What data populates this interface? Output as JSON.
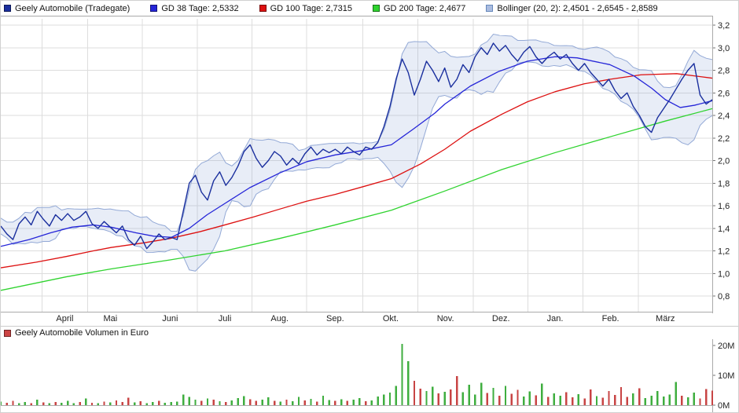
{
  "chart_data": {
    "type": "line",
    "title": "Geely Automobile (Tradegate)",
    "legend": [
      {
        "label": "Geely Automobile (Tradegate)",
        "color": "#1a2f9e"
      },
      {
        "label": "GD 38 Tage: 2,5332",
        "color": "#2525d8"
      },
      {
        "label": "GD 100 Tage: 2,7315",
        "color": "#dd1111"
      },
      {
        "label": "GD 200 Tage: 2,4677",
        "color": "#2fd32f"
      },
      {
        "label": "Bollinger (20, 2): 2,4501 - 2,6545 - 2,8589",
        "color": "#aabce0",
        "border": "#6688bb"
      }
    ],
    "y_axis": {
      "min": 0.8,
      "max": 3.2,
      "ticks": [
        {
          "label": "3,2",
          "value": 3.2
        },
        {
          "label": "3,0",
          "value": 3.0
        },
        {
          "label": "2,8",
          "value": 2.8
        },
        {
          "label": "2,6",
          "value": 2.6
        },
        {
          "label": "2,4",
          "value": 2.4
        },
        {
          "label": "2,2",
          "value": 2.2
        },
        {
          "label": "2,0",
          "value": 2.0
        },
        {
          "label": "1,8",
          "value": 1.8
        },
        {
          "label": "1,6",
          "value": 1.6
        },
        {
          "label": "1,4",
          "value": 1.4
        },
        {
          "label": "1,2",
          "value": 1.2
        },
        {
          "label": "1,0",
          "value": 1.0
        },
        {
          "label": "0,8",
          "value": 0.8
        }
      ]
    },
    "x_axis": {
      "months": [
        {
          "label": "April",
          "x": 0.09
        },
        {
          "label": "Mai",
          "x": 0.154
        },
        {
          "label": "Juni",
          "x": 0.238
        },
        {
          "label": "Juli",
          "x": 0.315
        },
        {
          "label": "Aug.",
          "x": 0.392
        },
        {
          "label": "Sep.",
          "x": 0.47
        },
        {
          "label": "Okt.",
          "x": 0.548
        },
        {
          "label": "Nov.",
          "x": 0.625
        },
        {
          "label": "Dez.",
          "x": 0.703
        },
        {
          "label": "Jan.",
          "x": 0.779
        },
        {
          "label": "Feb.",
          "x": 0.857
        },
        {
          "label": "März",
          "x": 0.934
        }
      ],
      "grid_x": [
        0.058,
        0.122,
        0.199,
        0.276,
        0.353,
        0.43,
        0.509,
        0.586,
        0.664,
        0.741,
        0.818,
        0.896
      ]
    },
    "series": {
      "price": {
        "name": "Geely Automobile (Tradegate)",
        "color": "#1a2f9e",
        "values": [
          1.42,
          1.35,
          1.3,
          1.44,
          1.5,
          1.43,
          1.55,
          1.48,
          1.42,
          1.52,
          1.47,
          1.53,
          1.47,
          1.5,
          1.55,
          1.44,
          1.4,
          1.46,
          1.41,
          1.36,
          1.42,
          1.3,
          1.25,
          1.33,
          1.22,
          1.28,
          1.35,
          1.3,
          1.32,
          1.3,
          1.55,
          1.8,
          1.87,
          1.72,
          1.65,
          1.82,
          1.9,
          1.78,
          1.85,
          1.95,
          2.08,
          2.14,
          2.02,
          1.94,
          2.0,
          2.08,
          2.04,
          1.96,
          2.02,
          1.97,
          2.06,
          2.12,
          2.05,
          2.1,
          2.07,
          2.1,
          2.06,
          2.12,
          2.08,
          2.05,
          2.12,
          2.1,
          2.16,
          2.3,
          2.48,
          2.72,
          2.9,
          2.78,
          2.58,
          2.72,
          2.88,
          2.8,
          2.7,
          2.82,
          2.65,
          2.72,
          2.85,
          2.78,
          2.92,
          3.0,
          2.94,
          3.04,
          2.97,
          3.02,
          2.94,
          2.88,
          2.96,
          3.01,
          2.92,
          2.86,
          2.92,
          2.96,
          2.9,
          2.94,
          2.86,
          2.8,
          2.86,
          2.78,
          2.72,
          2.66,
          2.72,
          2.62,
          2.55,
          2.6,
          2.48,
          2.4,
          2.3,
          2.25,
          2.38,
          2.46,
          2.54,
          2.63,
          2.72,
          2.8,
          2.86,
          2.58,
          2.5,
          2.54
        ]
      },
      "gd38": {
        "name": "GD 38 Tage",
        "last": "2,5332",
        "color": "#2525d8",
        "points": [
          [
            0,
            1.24
          ],
          [
            0.04,
            1.3
          ],
          [
            0.07,
            1.36
          ],
          [
            0.1,
            1.41
          ],
          [
            0.13,
            1.43
          ],
          [
            0.155,
            1.41
          ],
          [
            0.19,
            1.36
          ],
          [
            0.215,
            1.33
          ],
          [
            0.24,
            1.32
          ],
          [
            0.265,
            1.4
          ],
          [
            0.29,
            1.52
          ],
          [
            0.315,
            1.62
          ],
          [
            0.35,
            1.76
          ],
          [
            0.392,
            1.89
          ],
          [
            0.43,
            1.99
          ],
          [
            0.47,
            2.05
          ],
          [
            0.51,
            2.09
          ],
          [
            0.549,
            2.14
          ],
          [
            0.58,
            2.28
          ],
          [
            0.61,
            2.42
          ],
          [
            0.624,
            2.5
          ],
          [
            0.66,
            2.66
          ],
          [
            0.7,
            2.79
          ],
          [
            0.74,
            2.88
          ],
          [
            0.779,
            2.92
          ],
          [
            0.81,
            2.91
          ],
          [
            0.856,
            2.85
          ],
          [
            0.89,
            2.75
          ],
          [
            0.915,
            2.64
          ],
          [
            0.934,
            2.54
          ],
          [
            0.955,
            2.47
          ],
          [
            0.975,
            2.49
          ],
          [
            1.0,
            2.53
          ]
        ]
      },
      "gd100": {
        "name": "GD 100 Tage",
        "last": "2,7315",
        "color": "#dd1111",
        "points": [
          [
            0,
            1.05
          ],
          [
            0.05,
            1.1
          ],
          [
            0.092,
            1.15
          ],
          [
            0.13,
            1.2
          ],
          [
            0.155,
            1.23
          ],
          [
            0.2,
            1.27
          ],
          [
            0.238,
            1.31
          ],
          [
            0.28,
            1.37
          ],
          [
            0.315,
            1.43
          ],
          [
            0.355,
            1.5
          ],
          [
            0.392,
            1.57
          ],
          [
            0.43,
            1.64
          ],
          [
            0.47,
            1.7
          ],
          [
            0.51,
            1.77
          ],
          [
            0.549,
            1.84
          ],
          [
            0.59,
            1.97
          ],
          [
            0.624,
            2.1
          ],
          [
            0.66,
            2.26
          ],
          [
            0.704,
            2.41
          ],
          [
            0.74,
            2.52
          ],
          [
            0.779,
            2.61
          ],
          [
            0.82,
            2.68
          ],
          [
            0.856,
            2.72
          ],
          [
            0.9,
            2.76
          ],
          [
            0.95,
            2.77
          ],
          [
            1.0,
            2.73
          ]
        ]
      },
      "gd200": {
        "name": "GD 200 Tage",
        "last": "2,4677",
        "color": "#2fd32f",
        "points": [
          [
            0,
            0.85
          ],
          [
            0.092,
            0.97
          ],
          [
            0.155,
            1.04
          ],
          [
            0.238,
            1.12
          ],
          [
            0.315,
            1.2
          ],
          [
            0.392,
            1.31
          ],
          [
            0.47,
            1.43
          ],
          [
            0.549,
            1.56
          ],
          [
            0.624,
            1.73
          ],
          [
            0.704,
            1.92
          ],
          [
            0.779,
            2.07
          ],
          [
            0.856,
            2.21
          ],
          [
            0.934,
            2.35
          ],
          [
            1.0,
            2.46
          ]
        ]
      }
    },
    "bollinger": {
      "name": "Bollinger (20, 2)",
      "values_text": "2,4501 - 2,6545 - 2,8589",
      "stroke": "#93a9d6",
      "fill": "rgba(140,165,215,0.20)",
      "window": 8,
      "k": 2,
      "min_width": 0.07
    },
    "volume": {
      "legend": {
        "label": "Geely Automobile Volumen in Euro",
        "color": "#cc4444"
      },
      "green": "#3fae3f",
      "red": "#c84444",
      "ticks": [
        {
          "label": "20M",
          "value": 20
        },
        {
          "label": "10M",
          "value": 10
        },
        {
          "label": "0M",
          "value": 0
        }
      ],
      "bars": [
        [
          1.2,
          "g"
        ],
        [
          0.8,
          "r"
        ],
        [
          1.5,
          "r"
        ],
        [
          0.6,
          "g"
        ],
        [
          1.0,
          "g"
        ],
        [
          0.7,
          "r"
        ],
        [
          1.8,
          "g"
        ],
        [
          0.9,
          "r"
        ],
        [
          0.6,
          "g"
        ],
        [
          1.1,
          "r"
        ],
        [
          0.8,
          "g"
        ],
        [
          1.4,
          "g"
        ],
        [
          0.7,
          "g"
        ],
        [
          1.0,
          "r"
        ],
        [
          2.2,
          "g"
        ],
        [
          0.8,
          "r"
        ],
        [
          0.6,
          "g"
        ],
        [
          1.2,
          "r"
        ],
        [
          0.9,
          "g"
        ],
        [
          1.6,
          "r"
        ],
        [
          1.1,
          "r"
        ],
        [
          2.5,
          "r"
        ],
        [
          0.9,
          "g"
        ],
        [
          1.3,
          "r"
        ],
        [
          0.7,
          "g"
        ],
        [
          1.0,
          "g"
        ],
        [
          1.4,
          "r"
        ],
        [
          0.8,
          "g"
        ],
        [
          1.1,
          "g"
        ],
        [
          1.2,
          "g"
        ],
        [
          3.5,
          "g"
        ],
        [
          2.8,
          "g"
        ],
        [
          1.9,
          "g"
        ],
        [
          1.5,
          "r"
        ],
        [
          2.2,
          "g"
        ],
        [
          1.8,
          "r"
        ],
        [
          1.3,
          "g"
        ],
        [
          1.0,
          "r"
        ],
        [
          1.6,
          "g"
        ],
        [
          2.4,
          "g"
        ],
        [
          3.0,
          "g"
        ],
        [
          2.0,
          "r"
        ],
        [
          1.4,
          "r"
        ],
        [
          1.8,
          "g"
        ],
        [
          2.6,
          "g"
        ],
        [
          1.5,
          "r"
        ],
        [
          1.2,
          "g"
        ],
        [
          1.8,
          "r"
        ],
        [
          1.3,
          "g"
        ],
        [
          2.8,
          "g"
        ],
        [
          1.6,
          "r"
        ],
        [
          2.1,
          "g"
        ],
        [
          1.2,
          "r"
        ],
        [
          3.2,
          "g"
        ],
        [
          1.7,
          "g"
        ],
        [
          1.4,
          "r"
        ],
        [
          2.0,
          "g"
        ],
        [
          1.5,
          "r"
        ],
        [
          1.8,
          "g"
        ],
        [
          2.4,
          "g"
        ],
        [
          1.3,
          "r"
        ],
        [
          1.6,
          "g"
        ],
        [
          2.9,
          "g"
        ],
        [
          3.5,
          "g"
        ],
        [
          4.2,
          "g"
        ],
        [
          6.5,
          "g"
        ],
        [
          20.5,
          "g"
        ],
        [
          14.8,
          "g"
        ],
        [
          8.2,
          "r"
        ],
        [
          5.5,
          "r"
        ],
        [
          4.8,
          "g"
        ],
        [
          6.2,
          "g"
        ],
        [
          3.9,
          "r"
        ],
        [
          4.5,
          "g"
        ],
        [
          5.2,
          "r"
        ],
        [
          9.8,
          "r"
        ],
        [
          4.4,
          "g"
        ],
        [
          6.8,
          "g"
        ],
        [
          3.6,
          "g"
        ],
        [
          7.5,
          "g"
        ],
        [
          4.1,
          "r"
        ],
        [
          5.8,
          "g"
        ],
        [
          3.2,
          "r"
        ],
        [
          6.4,
          "g"
        ],
        [
          3.8,
          "r"
        ],
        [
          5.1,
          "r"
        ],
        [
          2.9,
          "g"
        ],
        [
          4.6,
          "g"
        ],
        [
          3.3,
          "r"
        ],
        [
          7.2,
          "g"
        ],
        [
          2.7,
          "r"
        ],
        [
          3.9,
          "g"
        ],
        [
          3.1,
          "g"
        ],
        [
          4.4,
          "r"
        ],
        [
          2.6,
          "r"
        ],
        [
          3.7,
          "g"
        ],
        [
          2.3,
          "r"
        ],
        [
          5.3,
          "r"
        ],
        [
          3.0,
          "g"
        ],
        [
          2.5,
          "r"
        ],
        [
          4.8,
          "r"
        ],
        [
          3.4,
          "r"
        ],
        [
          6.1,
          "r"
        ],
        [
          2.8,
          "r"
        ],
        [
          3.9,
          "g"
        ],
        [
          5.6,
          "r"
        ],
        [
          2.4,
          "g"
        ],
        [
          3.2,
          "g"
        ],
        [
          4.7,
          "g"
        ],
        [
          2.9,
          "g"
        ],
        [
          3.6,
          "g"
        ],
        [
          7.8,
          "g"
        ],
        [
          3.1,
          "r"
        ],
        [
          2.6,
          "g"
        ],
        [
          4.2,
          "g"
        ],
        [
          2.2,
          "r"
        ],
        [
          5.4,
          "r"
        ],
        [
          4.9,
          "r"
        ]
      ]
    }
  }
}
